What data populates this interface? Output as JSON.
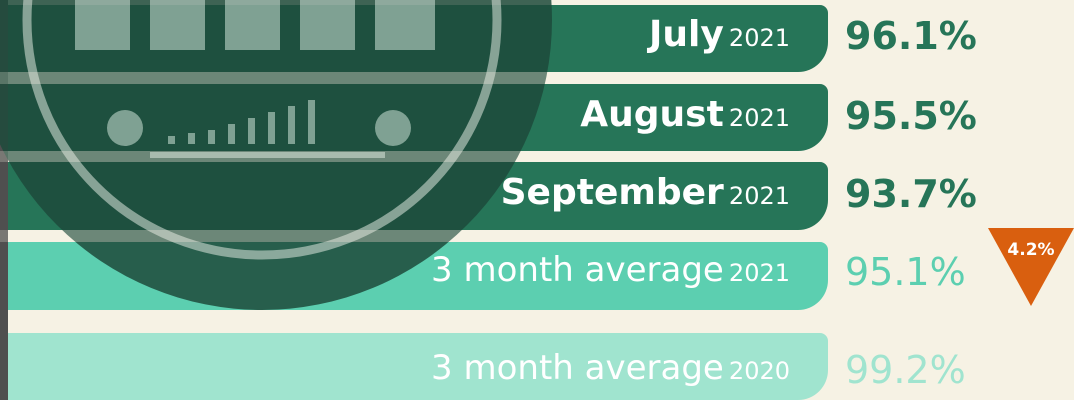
{
  "rows": [
    {
      "month": "July",
      "year": "2021",
      "value": "96.1%"
    },
    {
      "month": "August",
      "year": "2021",
      "value": "95.5%"
    },
    {
      "month": "September",
      "year": "2021",
      "value": "93.7%"
    }
  ],
  "averages": [
    {
      "label": "3 month average",
      "year": "2021",
      "value": "95.1%"
    },
    {
      "label": "3 month average",
      "year": "2020",
      "value": "99.2%"
    }
  ],
  "change": "4.2%"
}
